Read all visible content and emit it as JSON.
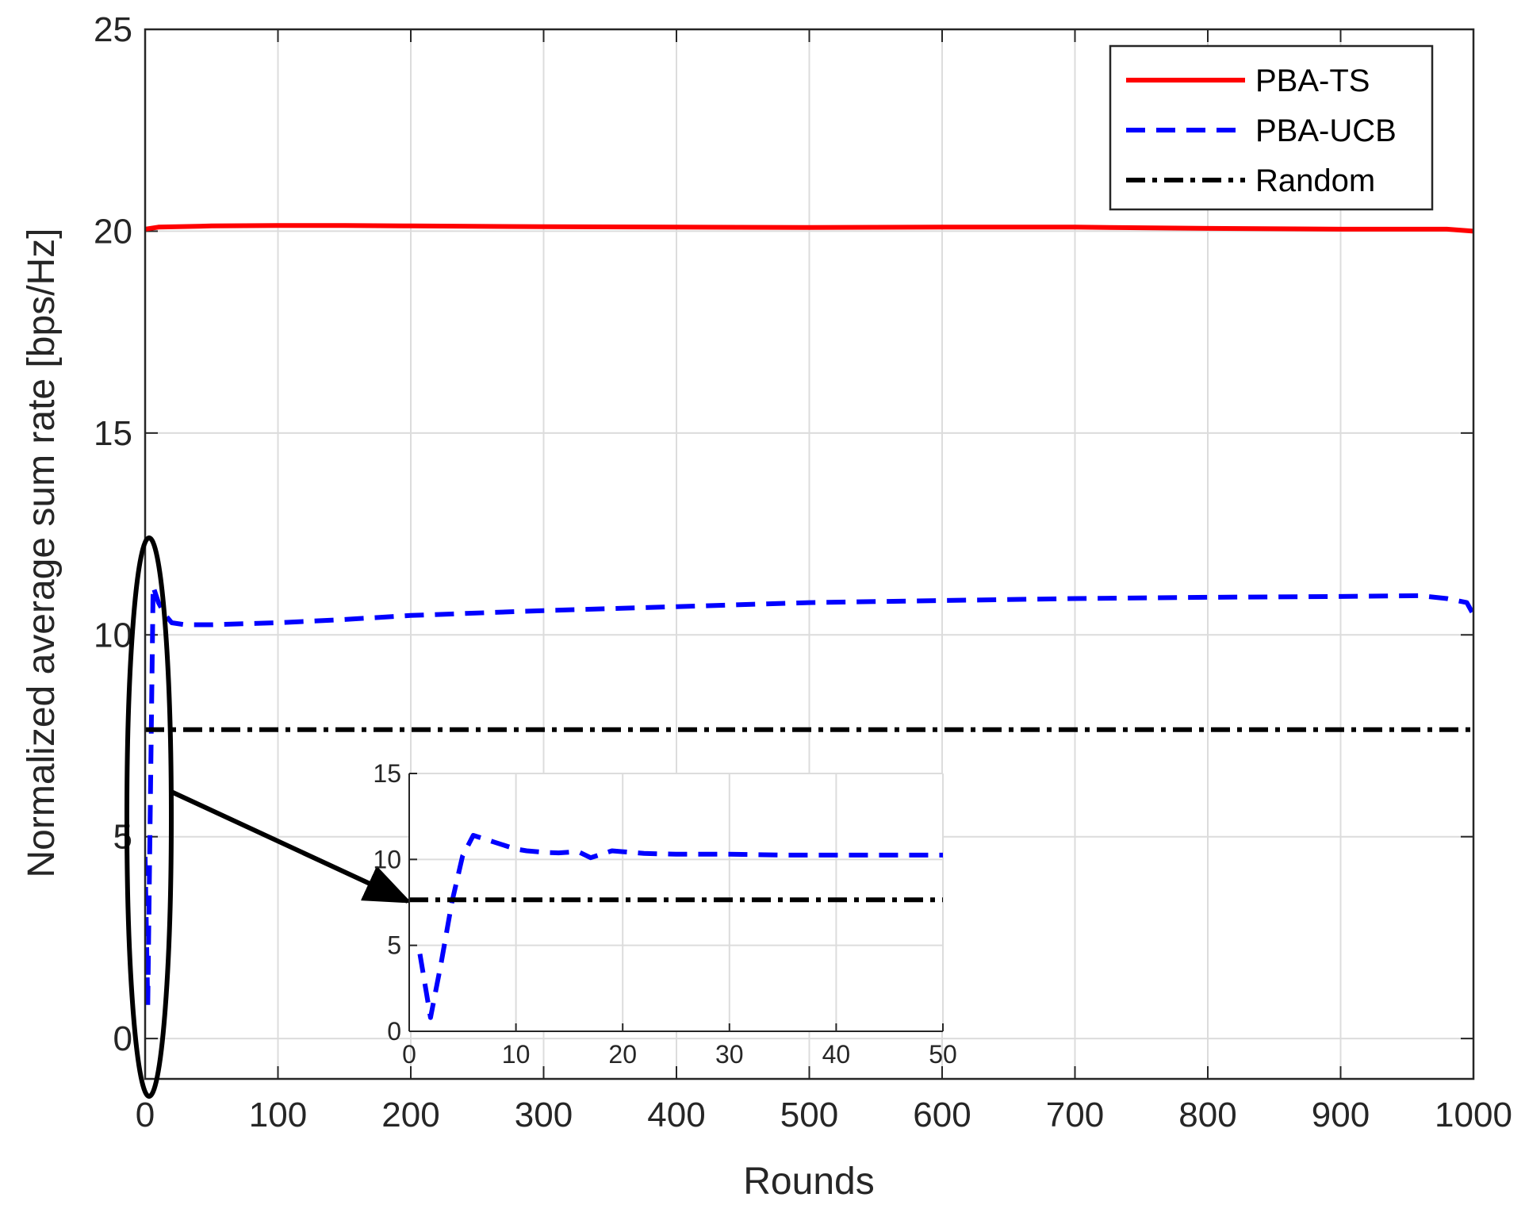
{
  "chart_data": [
    {
      "type": "line",
      "xlabel": "Rounds",
      "ylabel": "Normalized average sum rate [bps/Hz]",
      "xlim": [
        0,
        1000
      ],
      "ylim": [
        -1,
        25
      ],
      "xticks": [
        0,
        100,
        200,
        300,
        400,
        500,
        600,
        700,
        800,
        900,
        1000
      ],
      "yticks": [
        0,
        5,
        10,
        15,
        20,
        25
      ],
      "grid": true,
      "legend_position": "top-right",
      "series": [
        {
          "name": "PBA-TS",
          "color": "#ff0000",
          "style": "solid",
          "x": [
            0,
            10,
            50,
            100,
            150,
            200,
            300,
            400,
            500,
            600,
            700,
            800,
            900,
            980,
            1000
          ],
          "y": [
            20.05,
            20.1,
            20.13,
            20.14,
            20.14,
            20.13,
            20.11,
            20.1,
            20.09,
            20.1,
            20.1,
            20.07,
            20.05,
            20.05,
            20.0
          ]
        },
        {
          "name": "PBA-UCB",
          "color": "#0000ff",
          "style": "dashed",
          "x": [
            0,
            2,
            6,
            10,
            15,
            20,
            30,
            50,
            100,
            150,
            200,
            300,
            400,
            500,
            600,
            700,
            800,
            900,
            960,
            980,
            995,
            1000
          ],
          "y": [
            4.5,
            0.8,
            11.2,
            10.8,
            10.5,
            10.3,
            10.25,
            10.25,
            10.3,
            10.38,
            10.48,
            10.6,
            10.7,
            10.8,
            10.85,
            10.9,
            10.93,
            10.95,
            10.97,
            10.9,
            10.8,
            10.5
          ]
        },
        {
          "name": "Random",
          "color": "#000000",
          "style": "dashdot",
          "x": [
            0,
            1000
          ],
          "y": [
            7.65,
            7.65
          ]
        }
      ]
    },
    {
      "type": "line",
      "xlim": [
        0,
        50
      ],
      "ylim": [
        0,
        15
      ],
      "xticks": [
        0,
        10,
        20,
        30,
        40,
        50
      ],
      "yticks": [
        0,
        5,
        10,
        15
      ],
      "grid": true,
      "series": [
        {
          "color": "#0000ff",
          "style": "dashed",
          "x": [
            1,
            2,
            3,
            4,
            5,
            6,
            7,
            8,
            9,
            10,
            11,
            12,
            13,
            14,
            15,
            16,
            17,
            18,
            19,
            20,
            22,
            25,
            28,
            30,
            35,
            40,
            45,
            50
          ],
          "y": [
            4.5,
            0.8,
            4.0,
            7.5,
            10.2,
            11.4,
            11.2,
            11.0,
            10.8,
            10.6,
            10.5,
            10.45,
            10.4,
            10.38,
            10.42,
            10.4,
            10.1,
            10.3,
            10.5,
            10.45,
            10.35,
            10.3,
            10.3,
            10.3,
            10.25,
            10.25,
            10.25,
            10.25
          ]
        },
        {
          "color": "#000000",
          "style": "dashdot",
          "x": [
            0,
            50
          ],
          "y": [
            7.65,
            7.65
          ]
        }
      ]
    }
  ]
}
